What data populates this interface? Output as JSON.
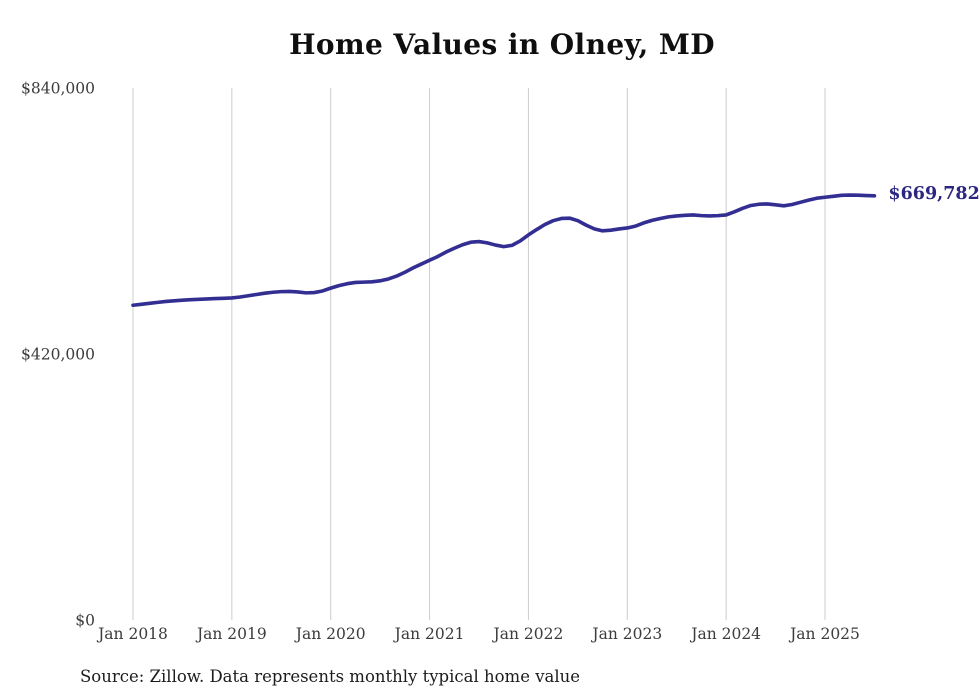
{
  "title": "Home Values in Olney, MD",
  "source_note": "Source: Zillow. Data represents monthly typical home value",
  "end_label": "$669,782",
  "colors": {
    "line": "#332f92",
    "end_label_text": "#2b2780",
    "gridline": "#cccccc",
    "tick_text": "#3c3c3c",
    "title_text": "#0f0f0f",
    "source_text": "#1c1c1c",
    "background": "#ffffff"
  },
  "chart_data": {
    "type": "line",
    "title": "Home Values in Olney, MD",
    "xlabel": "",
    "ylabel": "",
    "frequency": "monthly",
    "x_start": "Jan 2018",
    "x_end": "Jul 2025",
    "ylim": [
      0,
      840000
    ],
    "y_ticks": [
      0,
      420000,
      840000
    ],
    "y_tick_labels": [
      "$0",
      "$420,000",
      "$840,000"
    ],
    "x_tick_labels": [
      "Jan 2018",
      "Jan 2019",
      "Jan 2020",
      "Jan 2021",
      "Jan 2022",
      "Jan 2023",
      "Jan 2024",
      "Jan 2025"
    ],
    "months_per_x_tick": 12,
    "grid": "vertical-only",
    "legend": "none",
    "latest_value": 669782,
    "series": [
      {
        "name": "Typical home value",
        "values": [
          497000,
          498500,
          500000,
          501500,
          503000,
          504000,
          505000,
          505800,
          506400,
          507000,
          507500,
          508000,
          508500,
          510000,
          512000,
          514000,
          516000,
          517500,
          518500,
          518800,
          518000,
          516500,
          517000,
          519500,
          524000,
          528000,
          531000,
          533000,
          533500,
          534000,
          535500,
          538500,
          543000,
          549000,
          556000,
          562000,
          568000,
          574000,
          581000,
          587000,
          592500,
          596500,
          597500,
          595500,
          592000,
          589500,
          591500,
          598500,
          608000,
          616500,
          624500,
          630500,
          634000,
          634500,
          630500,
          623500,
          617500,
          614500,
          615500,
          617500,
          619000,
          622000,
          627000,
          631000,
          634000,
          636500,
          638000,
          639000,
          639500,
          638500,
          638000,
          638500,
          639500,
          644500,
          650000,
          654500,
          656500,
          657000,
          655500,
          654000,
          656000,
          659500,
          663000,
          666000,
          667500,
          669000,
          670500,
          671000,
          670800,
          670200,
          669782
        ]
      }
    ]
  }
}
